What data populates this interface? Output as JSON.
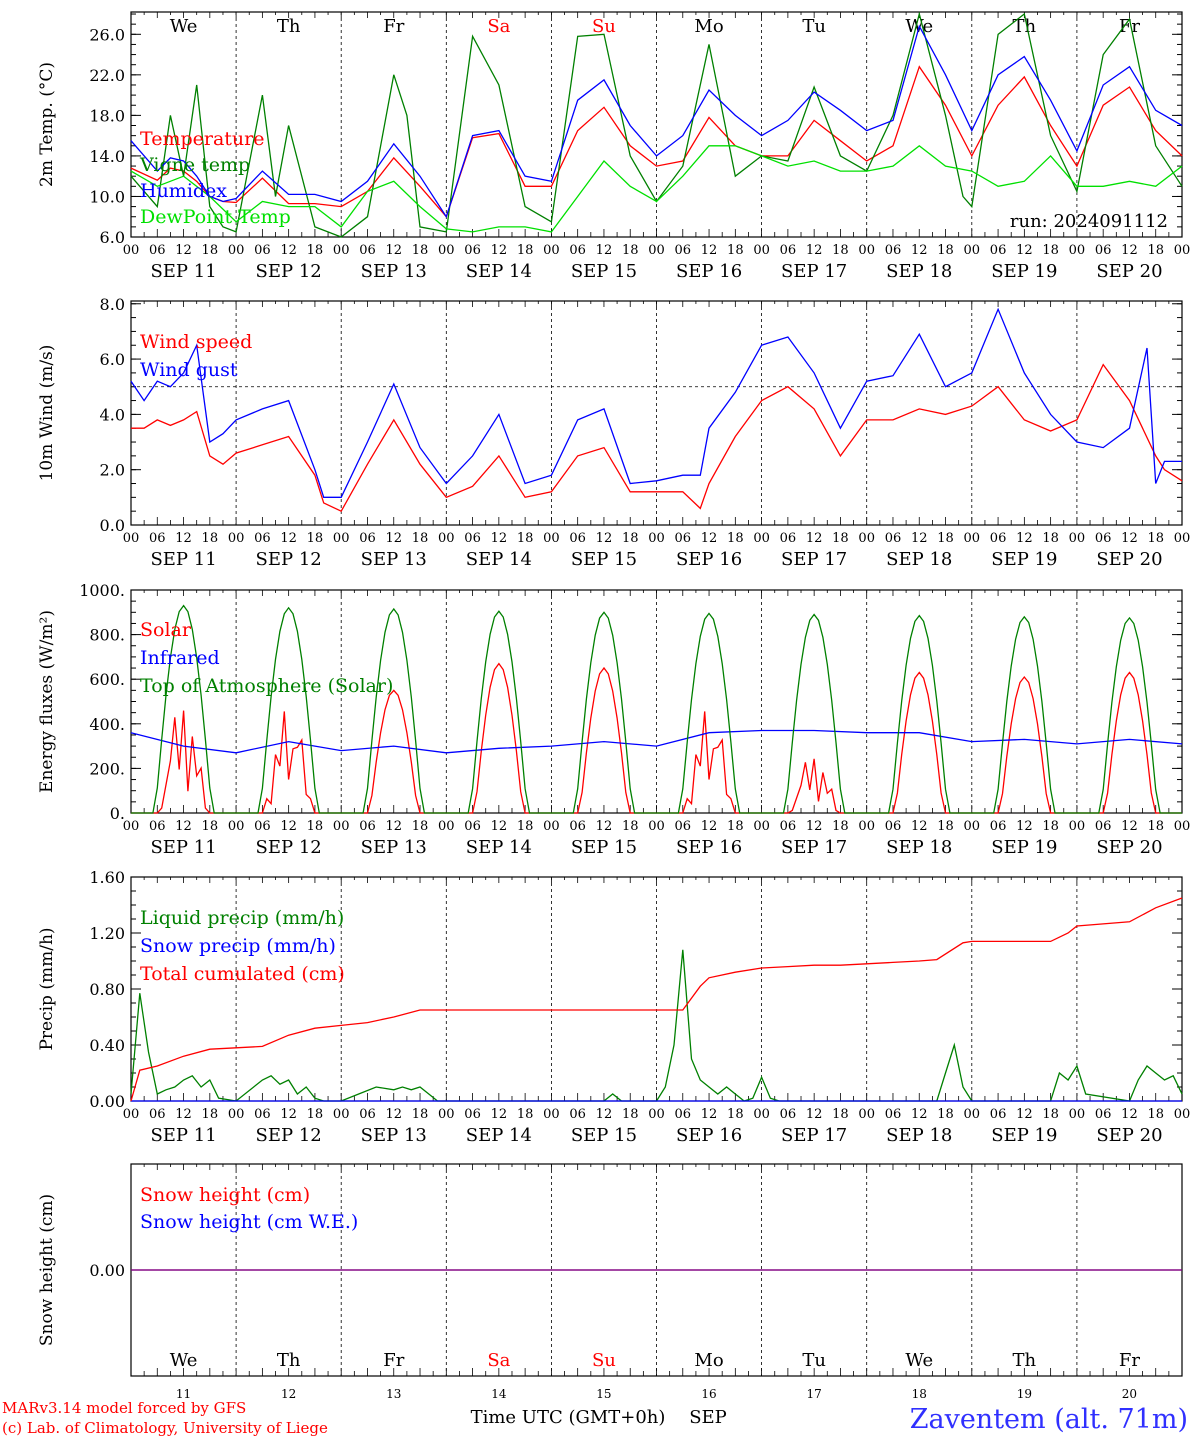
{
  "title": "Zaventem (alt. 71m)",
  "footer": {
    "credit_line1": "MARv3.14 model forced by GFS",
    "credit_line2": "(c) Lab. of Climatology, University of Liege",
    "xaxis_label": "Time UTC (GMT+0h)",
    "month": "SEP",
    "station": "Zaventem (alt. 71m)"
  },
  "run_label": "run: 2024091112",
  "days": {
    "weekday_labels": [
      "We",
      "Th",
      "Fr",
      "Sa",
      "Su",
      "Mo",
      "Tu",
      "We",
      "Th",
      "Fr"
    ],
    "weekend_flags": [
      false,
      false,
      false,
      true,
      true,
      false,
      false,
      false,
      false,
      false
    ],
    "date_labels": [
      "SEP 11",
      "SEP 12",
      "SEP 13",
      "SEP 14",
      "SEP 15",
      "SEP 16",
      "SEP 17",
      "SEP 18",
      "SEP 19",
      "SEP 20"
    ],
    "day_numbers": [
      "11",
      "12",
      "13",
      "14",
      "15",
      "16",
      "17",
      "18",
      "19",
      "20"
    ],
    "hour_ticks": [
      "00",
      "06",
      "12",
      "18"
    ]
  },
  "colors": {
    "red": "#ff0000",
    "dark_green": "#008000",
    "blue": "#0000ff",
    "light_green": "#00e000",
    "purple": "#800080",
    "title_blue": "#3030ff"
  },
  "chart_data": [
    {
      "type": "line",
      "ylabel": "2m Temp. (°C)",
      "yticks": [
        "6.0",
        "10.0",
        "14.0",
        "18.0",
        "22.0",
        "26.0"
      ],
      "ylim": [
        6,
        28.2
      ],
      "x_unit": "hours since 2024-09-11 00 UTC",
      "xlim": [
        0,
        240
      ],
      "series": [
        {
          "name": "Temperature",
          "color": "red",
          "x": [
            0,
            6,
            9,
            12,
            15,
            18,
            21,
            24,
            30,
            36,
            42,
            48,
            54,
            60,
            66,
            72,
            78,
            84,
            90,
            96,
            102,
            108,
            114,
            120,
            126,
            132,
            138,
            144,
            150,
            156,
            162,
            168,
            174,
            180,
            186,
            192,
            198,
            204,
            210,
            216,
            222,
            228,
            234,
            240
          ],
          "values": [
            12.8,
            11.6,
            12.8,
            12.5,
            11.5,
            10.0,
            9.5,
            9.4,
            11.8,
            9.3,
            9.3,
            9.0,
            10.5,
            13.8,
            11.0,
            8.0,
            15.8,
            16.2,
            11.0,
            11.0,
            16.5,
            18.8,
            15.0,
            13.0,
            13.5,
            17.8,
            15.0,
            14.0,
            14.0,
            17.5,
            15.5,
            13.5,
            15.0,
            22.8,
            19.0,
            14.0,
            19.0,
            21.8,
            17.0,
            13.0,
            19.0,
            20.8,
            16.5,
            14.0
          ]
        },
        {
          "name": "Vigne temp",
          "color": "dark_green",
          "x": [
            0,
            6,
            9,
            12,
            15,
            18,
            21,
            24,
            30,
            33,
            36,
            42,
            48,
            54,
            60,
            63,
            66,
            72,
            78,
            84,
            90,
            96,
            102,
            108,
            114,
            120,
            126,
            132,
            138,
            144,
            150,
            156,
            162,
            168,
            174,
            180,
            186,
            190,
            192,
            198,
            204,
            210,
            216,
            222,
            228,
            234,
            240
          ],
          "values": [
            12.0,
            9.0,
            18.0,
            12.0,
            21.0,
            9.0,
            7.0,
            6.5,
            20.0,
            10.0,
            17.0,
            7.0,
            6.0,
            8.0,
            22.0,
            18.0,
            7.0,
            6.5,
            25.8,
            21.0,
            9.0,
            7.5,
            25.8,
            26.0,
            14.0,
            9.5,
            13.0,
            25.0,
            12.0,
            14.0,
            13.5,
            20.8,
            14.0,
            12.5,
            18.0,
            28.0,
            18.0,
            10.0,
            9.0,
            26.0,
            28.0,
            16.0,
            10.5,
            24.0,
            27.5,
            15.0,
            11.0
          ]
        },
        {
          "name": "Humidex",
          "color": "blue",
          "x": [
            0,
            6,
            9,
            12,
            15,
            18,
            21,
            24,
            30,
            36,
            42,
            48,
            54,
            60,
            66,
            72,
            78,
            84,
            90,
            96,
            102,
            108,
            114,
            120,
            126,
            132,
            138,
            144,
            150,
            156,
            162,
            168,
            174,
            180,
            186,
            192,
            198,
            204,
            210,
            216,
            222,
            228,
            234,
            240
          ],
          "values": [
            15.5,
            12.5,
            13.8,
            13.5,
            12.0,
            10.0,
            9.5,
            9.8,
            12.5,
            10.2,
            10.2,
            9.5,
            11.5,
            15.2,
            12.0,
            8.0,
            16.0,
            16.5,
            12.0,
            11.5,
            19.5,
            21.5,
            17.0,
            14.0,
            16.0,
            20.5,
            18.0,
            16.0,
            17.5,
            20.3,
            18.5,
            16.5,
            17.5,
            26.8,
            22.0,
            16.5,
            22.0,
            23.8,
            19.5,
            14.5,
            21.0,
            22.8,
            18.5,
            17.0
          ]
        },
        {
          "name": "DewPoint Temp",
          "color": "light_green",
          "x": [
            0,
            6,
            12,
            18,
            24,
            30,
            36,
            42,
            48,
            54,
            60,
            66,
            72,
            78,
            84,
            90,
            96,
            102,
            108,
            114,
            120,
            126,
            132,
            138,
            144,
            150,
            156,
            162,
            168,
            174,
            180,
            186,
            192,
            198,
            204,
            210,
            216,
            222,
            228,
            234,
            240
          ],
          "values": [
            12.5,
            11.0,
            12.0,
            10.0,
            7.5,
            9.5,
            9.0,
            9.0,
            7.0,
            10.5,
            11.5,
            9.0,
            6.8,
            6.5,
            7.0,
            7.0,
            6.5,
            10.0,
            13.5,
            11.0,
            9.5,
            12.0,
            15.0,
            15.0,
            14.0,
            13.0,
            13.5,
            12.5,
            12.5,
            13.0,
            15.0,
            13.0,
            12.5,
            11.0,
            11.5,
            14.0,
            11.0,
            11.0,
            11.5,
            11.0,
            13.0
          ]
        }
      ]
    },
    {
      "type": "line",
      "ylabel": "10m Wind (m/s)",
      "yticks": [
        "0.0",
        "2.0",
        "4.0",
        "6.0",
        "8.0"
      ],
      "ylim": [
        0,
        8.1
      ],
      "reference_line": 5.0,
      "x_unit": "hours since 2024-09-11 00 UTC",
      "xlim": [
        0,
        240
      ],
      "series": [
        {
          "name": "Wind speed",
          "color": "red",
          "x": [
            0,
            3,
            6,
            9,
            12,
            15,
            18,
            21,
            24,
            30,
            36,
            42,
            44,
            48,
            54,
            60,
            66,
            72,
            78,
            84,
            90,
            96,
            102,
            108,
            114,
            120,
            126,
            130,
            132,
            138,
            144,
            150,
            156,
            162,
            168,
            174,
            180,
            186,
            192,
            198,
            204,
            210,
            216,
            222,
            228,
            234,
            236,
            240
          ],
          "values": [
            3.5,
            3.5,
            3.8,
            3.6,
            3.8,
            4.1,
            2.5,
            2.2,
            2.6,
            2.9,
            3.2,
            1.8,
            0.8,
            0.5,
            2.2,
            3.8,
            2.2,
            1.0,
            1.4,
            2.5,
            1.0,
            1.2,
            2.5,
            2.8,
            1.2,
            1.2,
            1.2,
            0.6,
            1.5,
            3.2,
            4.5,
            5.0,
            4.2,
            2.5,
            3.8,
            3.8,
            4.2,
            4.0,
            4.3,
            5.0,
            3.8,
            3.4,
            3.8,
            5.8,
            4.5,
            2.5,
            2.0,
            1.6
          ]
        },
        {
          "name": "Wind gust",
          "color": "blue",
          "x": [
            0,
            3,
            6,
            9,
            12,
            15,
            18,
            21,
            24,
            30,
            36,
            42,
            44,
            48,
            54,
            60,
            66,
            72,
            78,
            84,
            90,
            96,
            102,
            108,
            114,
            120,
            126,
            130,
            132,
            138,
            144,
            150,
            156,
            162,
            168,
            174,
            180,
            186,
            192,
            198,
            204,
            210,
            216,
            222,
            228,
            232,
            234,
            236,
            240
          ],
          "values": [
            5.2,
            4.5,
            5.2,
            5.0,
            5.5,
            6.5,
            3.0,
            3.3,
            3.8,
            4.2,
            4.5,
            2.0,
            1.0,
            1.0,
            3.0,
            5.1,
            2.8,
            1.5,
            2.5,
            4.0,
            1.5,
            1.8,
            3.8,
            4.2,
            1.5,
            1.6,
            1.8,
            1.8,
            3.5,
            4.8,
            6.5,
            6.8,
            5.5,
            3.5,
            5.2,
            5.4,
            6.9,
            5.0,
            5.5,
            7.8,
            5.5,
            4.0,
            3.0,
            2.8,
            3.5,
            6.4,
            1.5,
            2.3,
            2.3
          ]
        }
      ]
    },
    {
      "type": "line",
      "ylabel": "Energy fluxes (W/m²)",
      "yticks": [
        "0.",
        "200.",
        "400.",
        "600.",
        "800.",
        "1000."
      ],
      "ylim": [
        0,
        1000
      ],
      "x_unit": "hours since 2024-09-11 00 UTC",
      "xlim": [
        0,
        240
      ],
      "series": [
        {
          "name": "Solar",
          "color": "red",
          "note_peaks_by_day": [
            510,
            500,
            550,
            670,
            650,
            500,
            270,
            630,
            610,
            630
          ]
        },
        {
          "name": "Infrared",
          "color": "blue",
          "x": [
            0,
            12,
            24,
            36,
            48,
            60,
            72,
            84,
            96,
            108,
            120,
            132,
            144,
            156,
            168,
            180,
            192,
            204,
            216,
            228,
            240
          ],
          "values": [
            360,
            300,
            270,
            320,
            280,
            300,
            270,
            290,
            300,
            320,
            300,
            360,
            370,
            370,
            360,
            360,
            320,
            330,
            310,
            330,
            310
          ]
        },
        {
          "name": "Top of Atmosphere (Solar)",
          "color": "dark_green",
          "note_peaks_by_day": [
            930,
            920,
            915,
            905,
            900,
            895,
            890,
            885,
            880,
            875
          ]
        }
      ]
    },
    {
      "type": "line",
      "ylabel": "Precip (mm/h)",
      "yticks": [
        "0.00",
        "0.40",
        "0.80",
        "1.20",
        "1.60"
      ],
      "ylim": [
        0,
        1.6
      ],
      "x_unit": "hours since 2024-09-11 00 UTC",
      "xlim": [
        0,
        240
      ],
      "series": [
        {
          "name": "Liquid precip (mm/h)",
          "color": "dark_green",
          "x": [
            0,
            2,
            4,
            6,
            8,
            10,
            12,
            14,
            16,
            18,
            20,
            24,
            30,
            32,
            34,
            36,
            38,
            40,
            42,
            44,
            48,
            52,
            56,
            60,
            62,
            64,
            66,
            68,
            70,
            72,
            108,
            110,
            112,
            120,
            122,
            124,
            126,
            128,
            130,
            132,
            134,
            136,
            138,
            140,
            142,
            144,
            146,
            148,
            168,
            184,
            186,
            188,
            190,
            192,
            210,
            212,
            214,
            216,
            218,
            228,
            230,
            232,
            234,
            236,
            238,
            240
          ],
          "values": [
            0.05,
            0.77,
            0.35,
            0.05,
            0.08,
            0.1,
            0.15,
            0.18,
            0.1,
            0.15,
            0.02,
            0.0,
            0.15,
            0.18,
            0.12,
            0.15,
            0.05,
            0.1,
            0.02,
            0.0,
            0.0,
            0.05,
            0.1,
            0.08,
            0.1,
            0.08,
            0.1,
            0.05,
            0.0,
            0.0,
            0.0,
            0.05,
            0.0,
            0.0,
            0.1,
            0.4,
            1.08,
            0.3,
            0.15,
            0.1,
            0.05,
            0.1,
            0.05,
            0.0,
            0.02,
            0.17,
            0.02,
            0.0,
            0.0,
            0.0,
            0.2,
            0.4,
            0.1,
            0.0,
            0.0,
            0.2,
            0.15,
            0.25,
            0.05,
            0.0,
            0.15,
            0.25,
            0.2,
            0.15,
            0.18,
            0.05
          ]
        },
        {
          "name": "Snow precip (mm/h)",
          "color": "blue",
          "x": [
            0,
            240
          ],
          "values": [
            0,
            0
          ]
        },
        {
          "name": "Total cumulated (cm)",
          "color": "red",
          "x": [
            0,
            2,
            6,
            12,
            18,
            24,
            30,
            36,
            42,
            48,
            54,
            60,
            66,
            72,
            96,
            120,
            126,
            130,
            132,
            138,
            144,
            150,
            156,
            162,
            168,
            174,
            180,
            184,
            190,
            192,
            204,
            210,
            214,
            216,
            228,
            234,
            240
          ],
          "values": [
            0.0,
            0.22,
            0.25,
            0.32,
            0.37,
            0.38,
            0.39,
            0.47,
            0.52,
            0.54,
            0.56,
            0.6,
            0.65,
            0.65,
            0.65,
            0.65,
            0.65,
            0.82,
            0.88,
            0.92,
            0.95,
            0.96,
            0.97,
            0.97,
            0.98,
            0.99,
            1.0,
            1.01,
            1.13,
            1.14,
            1.14,
            1.14,
            1.2,
            1.25,
            1.28,
            1.38,
            1.45
          ]
        }
      ]
    },
    {
      "type": "line",
      "ylabel": "Snow height (cm)",
      "yticks": [
        "0.00"
      ],
      "ylim": [
        -1,
        1
      ],
      "x_unit": "hours since 2024-09-11 00 UTC",
      "xlim": [
        0,
        240
      ],
      "series": [
        {
          "name": "Snow height (cm)",
          "color": "red",
          "x": [
            0,
            240
          ],
          "values": [
            0,
            0
          ]
        },
        {
          "name": "Snow height (cm W.E.)",
          "color": "blue",
          "x": [
            0,
            240
          ],
          "values": [
            0,
            0
          ]
        }
      ]
    }
  ]
}
